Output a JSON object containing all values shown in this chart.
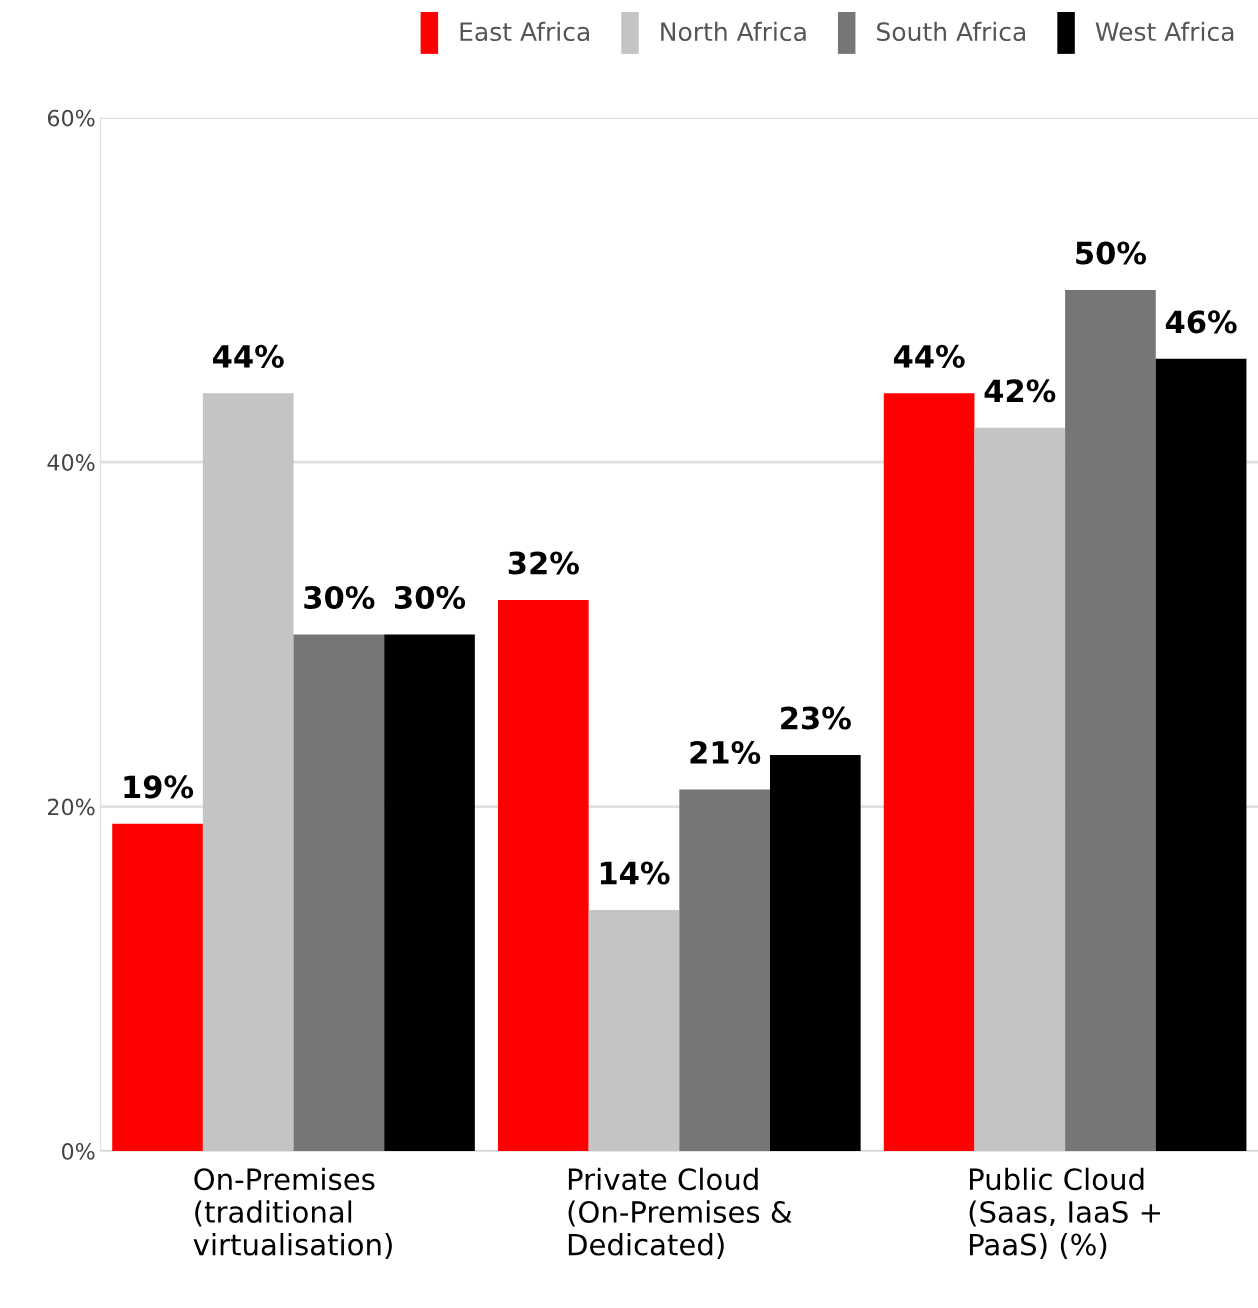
{
  "chart_data": {
    "type": "bar",
    "categories": [
      "On-Premises\n(traditional\nvirtualisation)",
      "Private Cloud\n(On-Premises &\nDedicated)",
      "Public Cloud\n(Saas, IaaS +\nPaaS) (%)"
    ],
    "series": [
      {
        "name": "East Africa",
        "color": "#ff0000",
        "values": [
          19,
          32,
          44
        ]
      },
      {
        "name": "North Africa",
        "color": "#c4c4c4",
        "values": [
          44,
          14,
          42
        ]
      },
      {
        "name": "South Africa",
        "color": "#767676",
        "values": [
          30,
          21,
          50
        ]
      },
      {
        "name": "West Africa",
        "color": "#000000",
        "values": [
          30,
          23,
          46
        ]
      }
    ],
    "ylim": [
      0,
      60
    ],
    "yticks": [
      {
        "value": 0,
        "label": "0%"
      },
      {
        "value": 20,
        "label": "20%"
      },
      {
        "value": 40,
        "label": "40%"
      },
      {
        "value": 60,
        "label": "60%"
      }
    ],
    "value_labels": [
      [
        "19%",
        "32%",
        "44%"
      ],
      [
        "44%",
        "14%",
        "42%"
      ],
      [
        "30%",
        "21%",
        "50%"
      ],
      [
        "30%",
        "23%",
        "46%"
      ]
    ],
    "grid": "y",
    "legend": "top right"
  }
}
